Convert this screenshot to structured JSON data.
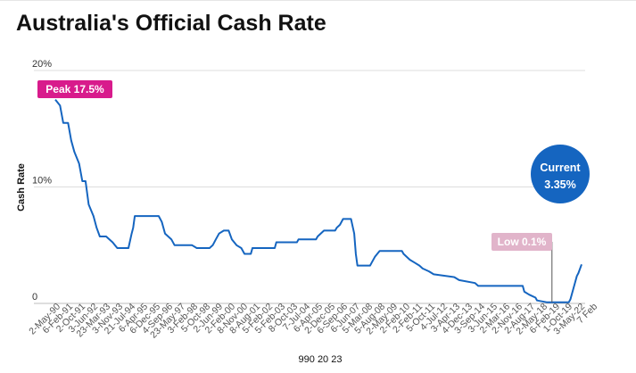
{
  "chart_data": {
    "type": "line",
    "title": "Australia's Official Cash Rate",
    "ylabel": "Cash Rate",
    "xlabel": "990 20 23",
    "ylim": [
      0,
      20
    ],
    "yticks": [
      {
        "value": 0,
        "label": "0"
      },
      {
        "value": 10,
        "label": "10%"
      },
      {
        "value": 20,
        "label": "20%"
      }
    ],
    "grid": true,
    "x_tick_labels": [
      "2-May-90",
      "6-Feb-91",
      "2-Oct-91",
      "3-Jun-92",
      "23-Mar-93",
      "3-Nov-93",
      "21-Jul-94",
      "6-Apr-95",
      "6-Dec-95",
      "4-Sep-96",
      "23-May-97",
      "3-Feb-98",
      "5-Oct-98",
      "2-Jun-99",
      "2-Feb-00",
      "8-Nov-00",
      "8-Aug-01",
      "5-Feb-02",
      "5-Feb-03",
      "8-Oct-03",
      "7-Jul-04",
      "6-Apr-05",
      "2-Dec-05",
      "6-Sep-06",
      "6-Jun-07",
      "5-Mar-08",
      "5-Aug-08",
      "2-May-09",
      "2-Feb-10",
      "2-Feb-11",
      "5-Oct-11",
      "4-Jul-12",
      "3-Apr-13",
      "4-Dec-13",
      "3-Sep-14",
      "3-Jun-15",
      "2-Mar-16",
      "2-Nov-16",
      "2-Aug-17",
      "2-May-18",
      "6-Feb-19",
      "1-Oct-19",
      "3-May-22",
      "7 Feb"
    ],
    "series": [
      {
        "color": "#1565c0",
        "points": [
          [
            1990.0,
            17.5
          ],
          [
            1990.3,
            17.0
          ],
          [
            1990.5,
            15.5
          ],
          [
            1990.8,
            15.5
          ],
          [
            1991.0,
            14.0
          ],
          [
            1991.2,
            13.0
          ],
          [
            1991.5,
            12.0
          ],
          [
            1991.7,
            10.5
          ],
          [
            1991.9,
            10.5
          ],
          [
            1992.1,
            8.5
          ],
          [
            1992.4,
            7.5
          ],
          [
            1992.6,
            6.5
          ],
          [
            1992.8,
            5.75
          ],
          [
            1993.2,
            5.75
          ],
          [
            1993.6,
            5.25
          ],
          [
            1993.9,
            4.75
          ],
          [
            1994.6,
            4.75
          ],
          [
            1994.8,
            6.0
          ],
          [
            1994.9,
            6.5
          ],
          [
            1995.0,
            7.5
          ],
          [
            1996.5,
            7.5
          ],
          [
            1996.7,
            7.0
          ],
          [
            1996.9,
            6.0
          ],
          [
            1997.3,
            5.5
          ],
          [
            1997.5,
            5.0
          ],
          [
            1998.6,
            5.0
          ],
          [
            1998.9,
            4.75
          ],
          [
            1999.7,
            4.75
          ],
          [
            1999.9,
            5.0
          ],
          [
            2000.1,
            5.5
          ],
          [
            2000.3,
            6.0
          ],
          [
            2000.6,
            6.25
          ],
          [
            2000.9,
            6.25
          ],
          [
            2001.1,
            5.5
          ],
          [
            2001.4,
            5.0
          ],
          [
            2001.7,
            4.75
          ],
          [
            2001.9,
            4.25
          ],
          [
            2002.3,
            4.25
          ],
          [
            2002.4,
            4.75
          ],
          [
            2003.8,
            4.75
          ],
          [
            2003.9,
            5.25
          ],
          [
            2005.2,
            5.25
          ],
          [
            2005.3,
            5.5
          ],
          [
            2006.4,
            5.5
          ],
          [
            2006.5,
            5.75
          ],
          [
            2006.9,
            6.25
          ],
          [
            2007.6,
            6.25
          ],
          [
            2007.7,
            6.5
          ],
          [
            2007.9,
            6.75
          ],
          [
            2008.1,
            7.25
          ],
          [
            2008.6,
            7.25
          ],
          [
            2008.8,
            6.0
          ],
          [
            2008.9,
            4.25
          ],
          [
            2009.0,
            3.25
          ],
          [
            2009.8,
            3.25
          ],
          [
            2009.9,
            3.5
          ],
          [
            2010.1,
            4.0
          ],
          [
            2010.4,
            4.5
          ],
          [
            2011.8,
            4.5
          ],
          [
            2011.9,
            4.25
          ],
          [
            2012.3,
            3.75
          ],
          [
            2012.6,
            3.5
          ],
          [
            2012.9,
            3.25
          ],
          [
            2013.1,
            3.0
          ],
          [
            2013.5,
            2.75
          ],
          [
            2013.8,
            2.5
          ],
          [
            2015.1,
            2.25
          ],
          [
            2015.4,
            2.0
          ],
          [
            2016.4,
            1.75
          ],
          [
            2016.6,
            1.5
          ],
          [
            2019.4,
            1.5
          ],
          [
            2019.5,
            1.0
          ],
          [
            2019.8,
            0.75
          ],
          [
            2020.2,
            0.5
          ],
          [
            2020.3,
            0.25
          ],
          [
            2020.9,
            0.1
          ],
          [
            2022.3,
            0.1
          ],
          [
            2022.4,
            0.35
          ],
          [
            2022.5,
            0.85
          ],
          [
            2022.6,
            1.35
          ],
          [
            2022.7,
            1.85
          ],
          [
            2022.8,
            2.35
          ],
          [
            2022.9,
            2.6
          ],
          [
            2023.1,
            3.35
          ]
        ]
      }
    ],
    "annotations": [
      {
        "text": "Peak 17.5%",
        "color": "#d81b8c"
      },
      {
        "text": "Low 0.1%",
        "color": "#e1b4ca"
      },
      {
        "text_line1": "Current",
        "text_line2": "3.35%",
        "color": "#1565c0"
      }
    ]
  }
}
